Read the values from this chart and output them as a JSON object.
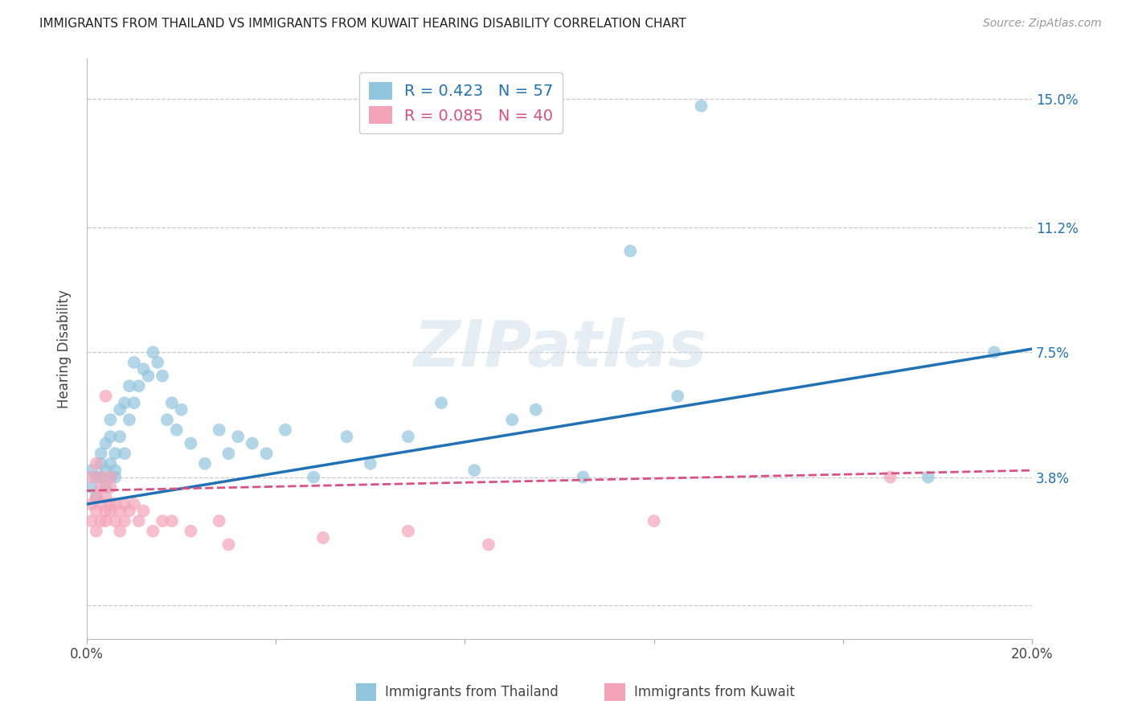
{
  "title": "IMMIGRANTS FROM THAILAND VS IMMIGRANTS FROM KUWAIT HEARING DISABILITY CORRELATION CHART",
  "source": "Source: ZipAtlas.com",
  "ylabel": "Hearing Disability",
  "xlim": [
    0.0,
    0.2
  ],
  "ylim": [
    -0.01,
    0.162
  ],
  "yticks": [
    0.0,
    0.038,
    0.075,
    0.112,
    0.15
  ],
  "ytick_labels": [
    "",
    "3.8%",
    "7.5%",
    "11.2%",
    "15.0%"
  ],
  "xticks": [
    0.0,
    0.04,
    0.08,
    0.12,
    0.16,
    0.2
  ],
  "xtick_labels": [
    "0.0%",
    "",
    "",
    "",
    "",
    "20.0%"
  ],
  "grid_color": "#c8c8c8",
  "background_color": "#ffffff",
  "blue_color": "#92c5de",
  "pink_color": "#f4a4b8",
  "line_blue": "#2171b5",
  "line_pink": "#d9517e",
  "watermark": "ZIPatlas",
  "legend_r_blue": "R = 0.423",
  "legend_n_blue": "N = 57",
  "legend_r_pink": "R = 0.085",
  "legend_n_pink": "N = 40",
  "thailand_x": [
    0.001,
    0.001,
    0.002,
    0.002,
    0.003,
    0.003,
    0.003,
    0.004,
    0.004,
    0.004,
    0.005,
    0.005,
    0.005,
    0.005,
    0.006,
    0.006,
    0.006,
    0.007,
    0.007,
    0.008,
    0.008,
    0.009,
    0.009,
    0.01,
    0.01,
    0.011,
    0.012,
    0.013,
    0.014,
    0.015,
    0.016,
    0.017,
    0.018,
    0.019,
    0.02,
    0.022,
    0.025,
    0.028,
    0.03,
    0.032,
    0.035,
    0.038,
    0.042,
    0.048,
    0.055,
    0.06,
    0.068,
    0.075,
    0.082,
    0.09,
    0.095,
    0.105,
    0.115,
    0.125,
    0.13,
    0.178,
    0.192
  ],
  "thailand_y": [
    0.04,
    0.035,
    0.038,
    0.032,
    0.042,
    0.038,
    0.045,
    0.035,
    0.04,
    0.048,
    0.038,
    0.042,
    0.05,
    0.055,
    0.04,
    0.045,
    0.038,
    0.05,
    0.058,
    0.06,
    0.045,
    0.055,
    0.065,
    0.06,
    0.072,
    0.065,
    0.07,
    0.068,
    0.075,
    0.072,
    0.068,
    0.055,
    0.06,
    0.052,
    0.058,
    0.048,
    0.042,
    0.052,
    0.045,
    0.05,
    0.048,
    0.045,
    0.052,
    0.038,
    0.05,
    0.042,
    0.05,
    0.06,
    0.04,
    0.055,
    0.058,
    0.038,
    0.105,
    0.062,
    0.148,
    0.038,
    0.075
  ],
  "kuwait_x": [
    0.001,
    0.001,
    0.001,
    0.002,
    0.002,
    0.002,
    0.002,
    0.003,
    0.003,
    0.003,
    0.003,
    0.004,
    0.004,
    0.004,
    0.005,
    0.005,
    0.005,
    0.005,
    0.006,
    0.006,
    0.007,
    0.007,
    0.008,
    0.008,
    0.009,
    0.01,
    0.011,
    0.012,
    0.014,
    0.016,
    0.018,
    0.022,
    0.028,
    0.03,
    0.05,
    0.068,
    0.085,
    0.12,
    0.17,
    0.004
  ],
  "kuwait_y": [
    0.038,
    0.03,
    0.025,
    0.042,
    0.032,
    0.028,
    0.022,
    0.035,
    0.038,
    0.025,
    0.03,
    0.028,
    0.032,
    0.025,
    0.035,
    0.03,
    0.028,
    0.038,
    0.025,
    0.03,
    0.028,
    0.022,
    0.03,
    0.025,
    0.028,
    0.03,
    0.025,
    0.028,
    0.022,
    0.025,
    0.025,
    0.022,
    0.025,
    0.018,
    0.02,
    0.022,
    0.018,
    0.025,
    0.038,
    0.062
  ],
  "blue_line_x": [
    0.0,
    0.2
  ],
  "blue_line_y": [
    0.03,
    0.076
  ],
  "pink_line_x": [
    0.0,
    0.2
  ],
  "pink_line_y": [
    0.034,
    0.04
  ]
}
